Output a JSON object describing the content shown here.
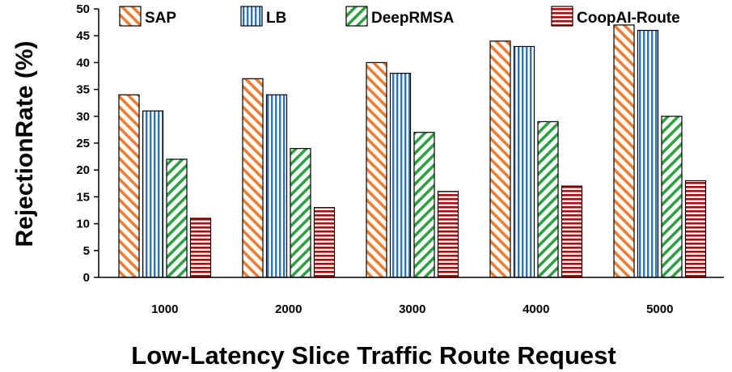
{
  "chart_data": {
    "type": "bar",
    "title": "",
    "xlabel": "Low-Latency Slice Traffic Route Request",
    "ylabel": "RejectionRate (%)",
    "categories": [
      "1000",
      "2000",
      "3000",
      "4000",
      "5000"
    ],
    "ylim": [
      0,
      50
    ],
    "yticks": [
      0,
      5,
      10,
      15,
      20,
      25,
      30,
      35,
      40,
      45,
      50
    ],
    "grid": false,
    "legend_position": "top",
    "series": [
      {
        "name": "SAP",
        "color": "#ED7D31",
        "pattern": "diagonal-down",
        "values": [
          34,
          37,
          40,
          44,
          47
        ]
      },
      {
        "name": "LB",
        "color": "#2E75B6",
        "pattern": "vertical",
        "values": [
          31,
          34,
          38,
          43,
          46
        ]
      },
      {
        "name": "DeepRMSA",
        "color": "#2EA043",
        "pattern": "diagonal-up",
        "values": [
          22,
          24,
          27,
          29,
          30
        ]
      },
      {
        "name": "CoopAI-Route",
        "color": "#C00000",
        "pattern": "horizontal",
        "values": [
          11,
          13,
          16,
          17,
          18
        ]
      }
    ]
  }
}
